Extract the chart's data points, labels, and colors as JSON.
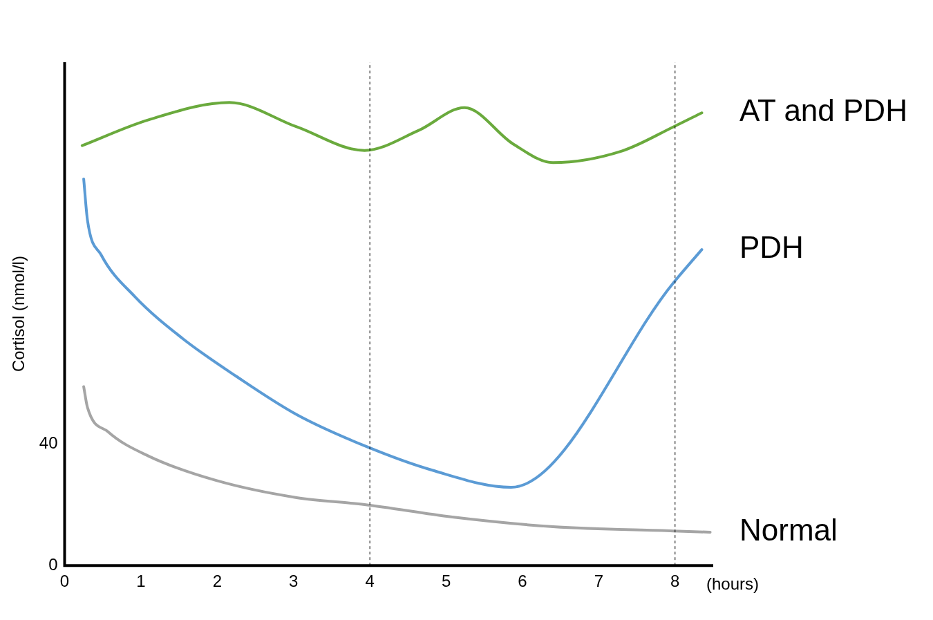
{
  "chart_data": {
    "type": "line",
    "ylabel": "Cortisol (nmol/l)",
    "xlabel": "(hours)",
    "xlim": [
      0,
      8.5
    ],
    "xticks": [
      0,
      1,
      2,
      3,
      4,
      5,
      6,
      7,
      8
    ],
    "ylim": [
      0,
      166
    ],
    "yticks": [
      0,
      40
    ],
    "grid": false,
    "legend": false,
    "marker": "none",
    "line_style": "solid",
    "ref_lines": [
      {
        "axis": "x",
        "value": 4,
        "color": "#000000",
        "line_style": "dashed"
      },
      {
        "axis": "x",
        "value": 8,
        "color": "#000000",
        "line_style": "dashed"
      }
    ],
    "series": [
      {
        "name": "AT and PDH",
        "color": "#6aaa3d",
        "x": [
          0.23,
          1.1,
          2.16,
          3.04,
          3.93,
          4.64,
          5.24,
          5.88,
          6.4,
          7.3,
          7.98,
          8.35
        ],
        "values": [
          138.5,
          147,
          152.7,
          144.7,
          136.9,
          143.5,
          151,
          139,
          132.9,
          136.7,
          144.7,
          149.3
        ]
      },
      {
        "name": "PDH",
        "color": "#5b9bd5",
        "x": [
          0.25,
          0.3,
          0.48,
          0.92,
          1.54,
          2.25,
          3.04,
          3.93,
          4.81,
          5.85,
          7.98,
          8.35
        ],
        "values": [
          127.5,
          113.8,
          102.4,
          88.7,
          75,
          62.4,
          49.8,
          39.5,
          31.5,
          25.8,
          93.3,
          104.2
        ]
      },
      {
        "name": "Normal",
        "color": "#a5a5a5",
        "x": [
          0.25,
          0.3,
          0.57,
          1.1,
          1.98,
          3.04,
          3.93,
          5.08,
          6.4,
          7.98,
          8.46
        ],
        "values": [
          59,
          52.1,
          44.1,
          36.1,
          28.1,
          22.4,
          20.1,
          16,
          12.8,
          11.4,
          11
        ]
      }
    ]
  }
}
